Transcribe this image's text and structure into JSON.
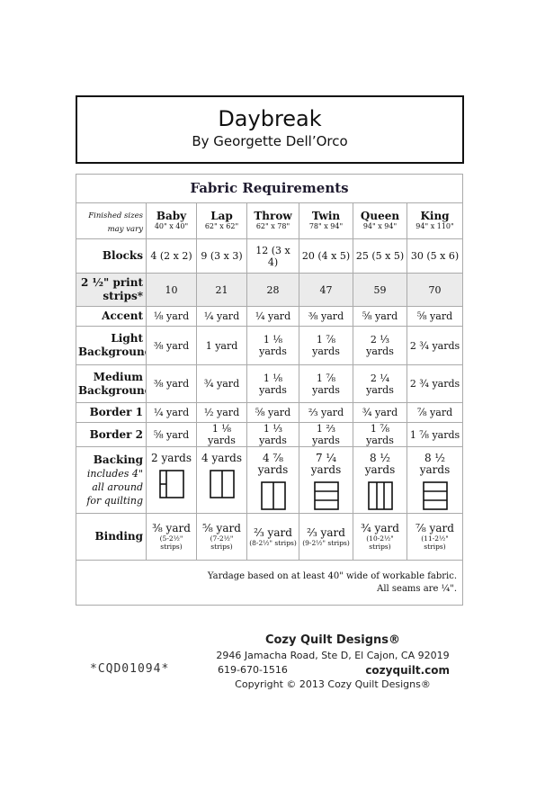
{
  "header": {
    "title": "Daybreak",
    "author": "By Georgette Dell’Orco"
  },
  "table": {
    "title": "Fabric Requirements",
    "size_note_1": "Finished sizes",
    "size_note_2": "may vary",
    "columns": [
      {
        "name": "Baby",
        "size": "40\" x 40\""
      },
      {
        "name": "Lap",
        "size": "62\" x 62\""
      },
      {
        "name": "Throw",
        "size": "62\" x 78\""
      },
      {
        "name": "Twin",
        "size": "78\" x 94\""
      },
      {
        "name": "Queen",
        "size": "94\" x 94\""
      },
      {
        "name": "King",
        "size": "94\" x 110\""
      }
    ],
    "rows": [
      {
        "label": "Blocks",
        "values": [
          "4 (2 x 2)",
          "9 (3 x 3)",
          "12 (3 x 4)",
          "20 (4 x 5)",
          "25 (5 x 5)",
          "30 (5 x 6)"
        ]
      },
      {
        "label": "2 ½\" print strips*",
        "values": [
          "10",
          "21",
          "28",
          "47",
          "59",
          "70"
        ]
      },
      {
        "label": "Accent",
        "values": [
          "⅛ yard",
          "¼ yard",
          "¼ yard",
          "⅜ yard",
          "⅝ yard",
          "⅝ yard"
        ]
      },
      {
        "label": "Light Background",
        "values": [
          "⅜ yard",
          "1 yard",
          "1 ⅛ yards",
          "1 ⅞ yards",
          "2 ⅓ yards",
          "2 ¾ yards"
        ]
      },
      {
        "label": "Medium Background",
        "values": [
          "⅜ yard",
          "¾ yard",
          "1 ⅛ yards",
          "1 ⅞ yards",
          "2 ¼ yards",
          "2 ¾ yards"
        ]
      },
      {
        "label": "Border 1",
        "values": [
          "¼ yard",
          "½ yard",
          "⅝ yard",
          "⅔ yard",
          "¾ yard",
          "⅞ yard"
        ]
      },
      {
        "label": "Border 2",
        "values": [
          "⅝ yard",
          "1 ⅛ yards",
          "1 ⅓ yards",
          "1 ⅔ yards",
          "1 ⅞ yards",
          "1 ⅞ yards"
        ]
      }
    ],
    "backing": {
      "label": "Backing",
      "note": "includes 4\" all around for quilting",
      "values": [
        "2 yards",
        "4 yards",
        "4 ⅞ yards",
        "7 ¼ yards",
        "8 ½ yards",
        "8 ½ yards"
      ],
      "icons": [
        "backing-layout-partial-seam-icon",
        "backing-layout-two-vertical-icon",
        "backing-layout-two-vertical-icon",
        "backing-layout-three-horizontal-icon",
        "backing-layout-three-vertical-icon",
        "backing-layout-three-horizontal-icon"
      ]
    },
    "binding": {
      "label": "Binding",
      "values": [
        "⅜ yard",
        "⅝ yard",
        "⅔ yard",
        "⅔ yard",
        "¾ yard",
        "⅞ yard"
      ],
      "strips": [
        "(5-2½\" strips)",
        "(7-2½\" strips)",
        "(8-2½\" strips)",
        "(9-2½\" strips)",
        "(10-2½\" strips)",
        "(11-2½\" strips)"
      ]
    },
    "footnote_1": "Yardage based on at least 40\" wide of workable fabric.",
    "footnote_2": "All seams are ¼\"."
  },
  "footer": {
    "code": "*CQD01094*",
    "company": "Cozy Quilt Designs®",
    "address": "2946 Jamacha Road, Ste D, El Cajon, CA 92019",
    "phone": "619-670-1516",
    "website": "cozyquilt.com",
    "copyright": "Copyright © 2013 Cozy Quilt Designs®"
  }
}
